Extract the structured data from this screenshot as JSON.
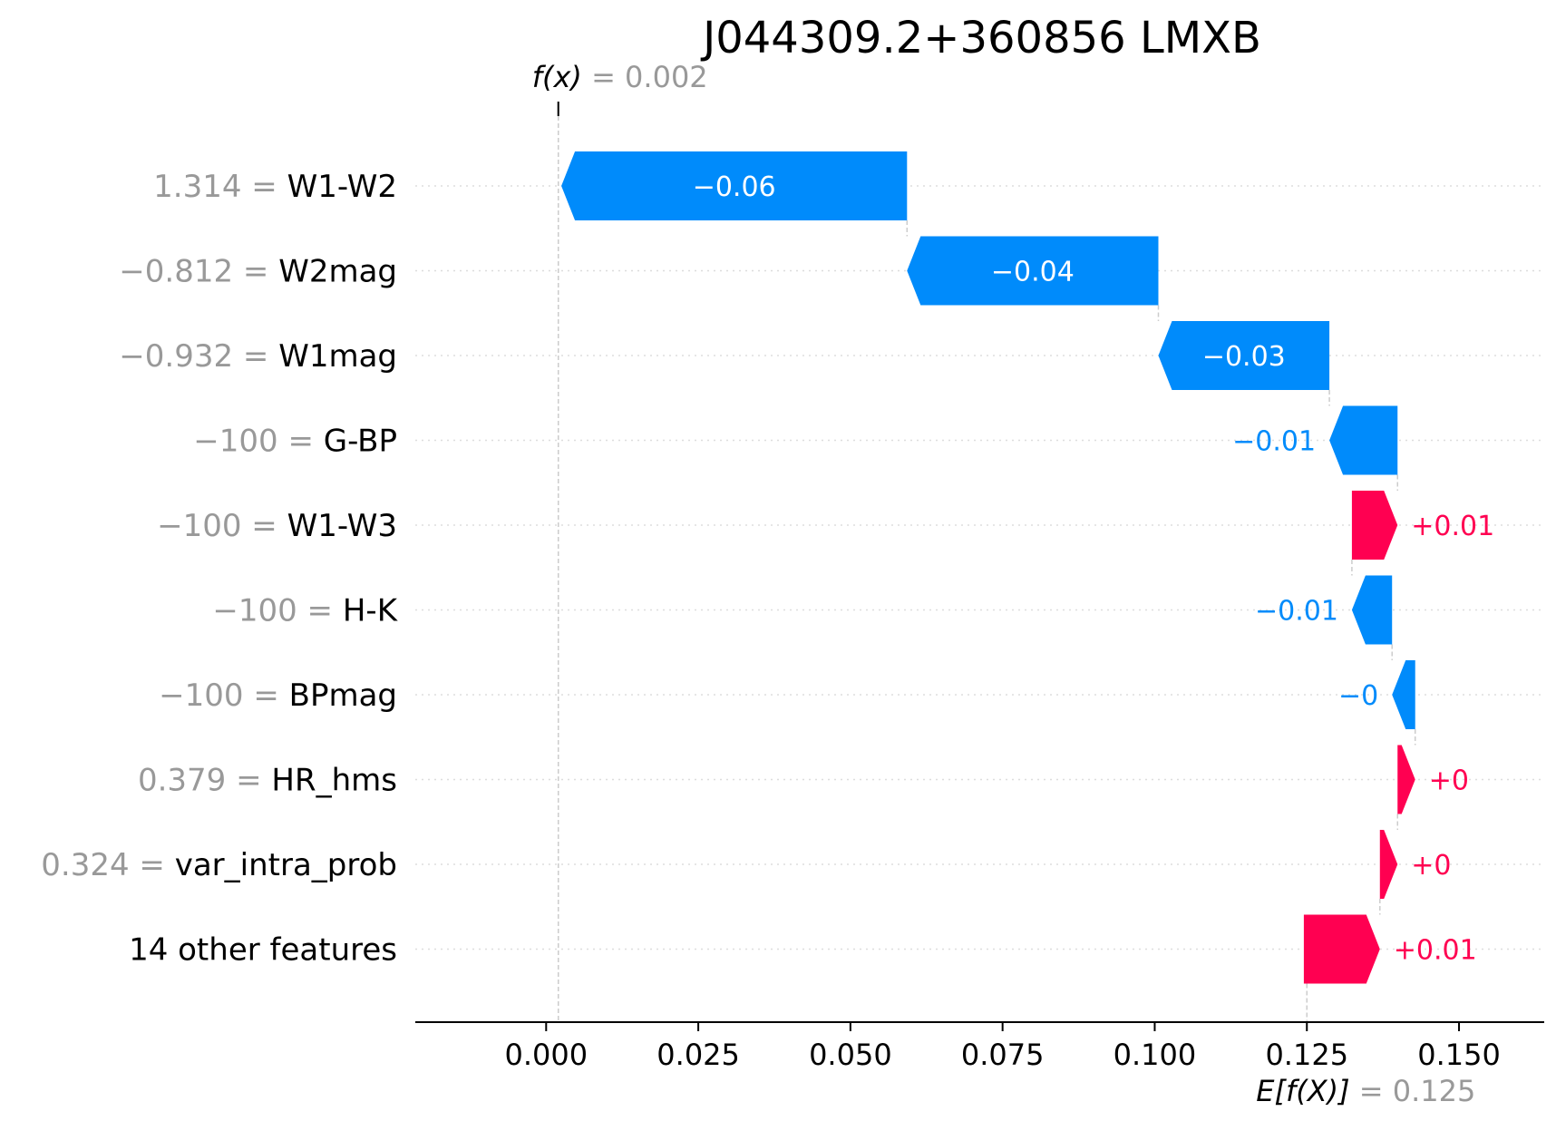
{
  "chart_data": {
    "type": "waterfall",
    "title": "J044309.2+360856 LMXB",
    "fx": {
      "label": "f(x)",
      "eq": " = ",
      "value": "0.002"
    },
    "efx": {
      "label": "E[f(X)]",
      "eq": " = ",
      "value": "0.125"
    },
    "base_value": 0.125,
    "output_value": 0.002,
    "xlim": [
      -0.0215,
      0.164
    ],
    "xticks": [
      0.0,
      0.025,
      0.05,
      0.075,
      0.1,
      0.125,
      0.15
    ],
    "xtick_labels": [
      "0.000",
      "0.025",
      "0.050",
      "0.075",
      "0.100",
      "0.125",
      "0.150"
    ],
    "features": [
      {
        "value": "1.314",
        "name": "W1-W2",
        "start": 0.0593,
        "end": 0.0025,
        "label": "−0.06"
      },
      {
        "value": "−0.812",
        "name": "W2mag",
        "start": 0.1006,
        "end": 0.0593,
        "label": "−0.04"
      },
      {
        "value": "−0.932",
        "name": "W1mag",
        "start": 0.1287,
        "end": 0.1006,
        "label": "−0.03"
      },
      {
        "value": "−100",
        "name": "G-BP",
        "start": 0.1399,
        "end": 0.1287,
        "label": "−0.01"
      },
      {
        "value": "−100",
        "name": "W1-W3",
        "start": 0.1324,
        "end": 0.1399,
        "label": "+0.01"
      },
      {
        "value": "−100",
        "name": "H-K",
        "start": 0.139,
        "end": 0.1324,
        "label": "−0.01"
      },
      {
        "value": "−100",
        "name": "BPmag",
        "start": 0.1428,
        "end": 0.139,
        "label": "−0"
      },
      {
        "value": "0.379",
        "name": "HR_hms",
        "start": 0.1399,
        "end": 0.1428,
        "label": "+0"
      },
      {
        "value": "0.324",
        "name": "var_intra_prob",
        "start": 0.137,
        "end": 0.1399,
        "label": "+0"
      },
      {
        "value": "",
        "name": "14 other features",
        "start": 0.1245,
        "end": 0.137,
        "label": "+0.01"
      }
    ],
    "colors": {
      "positive": "#ff0051",
      "negative": "#008bfb",
      "axis": "#000000",
      "muted": "#999999",
      "guide": "#cccccc",
      "grid": "#dddddd"
    }
  }
}
